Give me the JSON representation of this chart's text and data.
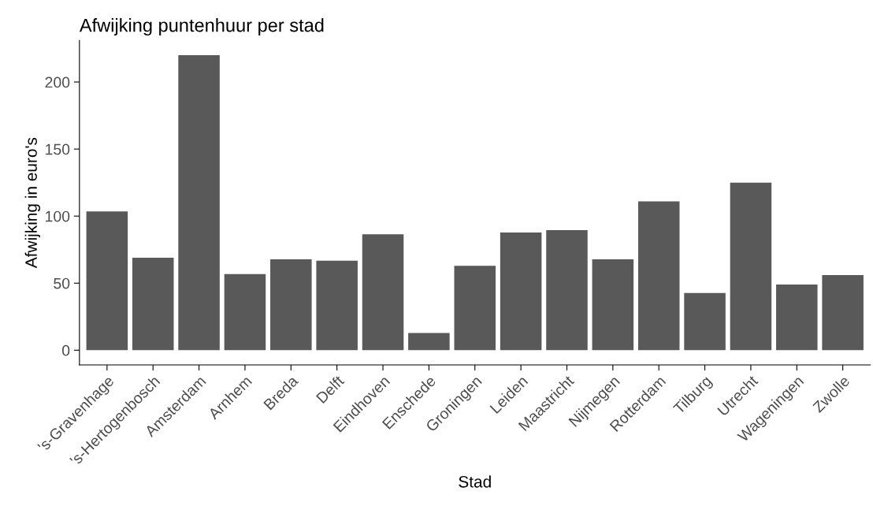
{
  "chart_data": {
    "type": "bar",
    "title": "Afwijking puntenhuur per stad",
    "xlabel": "Stad",
    "ylabel": "Afwijking in euro's",
    "categories": [
      "'s-Gravenhage",
      "'s-Hertogenbosch",
      "Amsterdam",
      "Arnhem",
      "Breda",
      "Delft",
      "Eindhoven",
      "Enschede",
      "Groningen",
      "Leiden",
      "Maastricht",
      "Nijmegen",
      "Rotterdam",
      "Tilburg",
      "Utrecht",
      "Wageningen",
      "Zwolle"
    ],
    "values": [
      103.5,
      69,
      220,
      56.7,
      67.8,
      66.7,
      86.5,
      12.9,
      63,
      87.7,
      89.5,
      67.8,
      111,
      42.7,
      125,
      49,
      56
    ],
    "color": "#595959",
    "ylim": [
      -11,
      231
    ],
    "yticks": [
      0,
      50,
      100,
      150,
      200
    ],
    "grid": false,
    "legend": false
  }
}
